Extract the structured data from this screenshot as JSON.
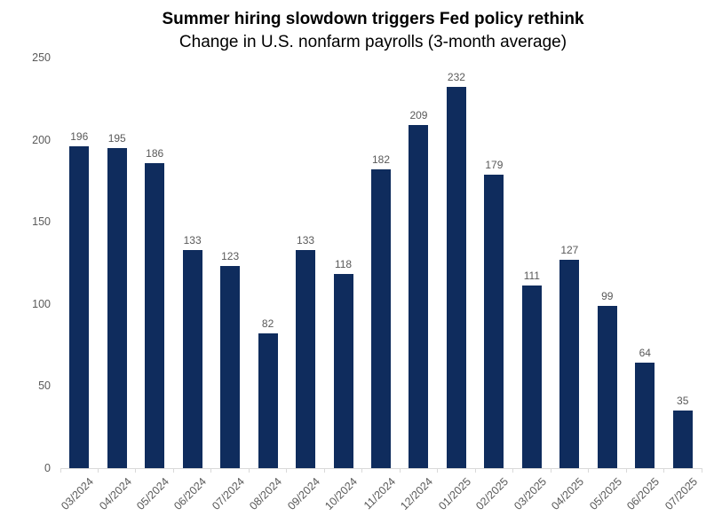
{
  "chart_data": {
    "type": "bar",
    "title": "Summer hiring slowdown triggers Fed policy rethink",
    "subtitle": "Change in U.S. nonfarm payrolls (3-month average)",
    "categories": [
      "03/2024",
      "04/2024",
      "05/2024",
      "06/2024",
      "07/2024",
      "08/2024",
      "09/2024",
      "10/2024",
      "11/2024",
      "12/2024",
      "01/2025",
      "02/2025",
      "03/2025",
      "04/2025",
      "05/2025",
      "06/2025",
      "07/2025"
    ],
    "values": [
      196,
      195,
      186,
      133,
      123,
      82,
      133,
      118,
      182,
      209,
      232,
      179,
      111,
      127,
      99,
      64,
      35
    ],
    "xlabel": "",
    "ylabel": "",
    "ylim": [
      0,
      250
    ],
    "yticks": [
      0,
      50,
      100,
      150,
      200,
      250
    ],
    "grid": false,
    "legend_position": "none",
    "value_labels_shown": true,
    "x_labels_rotation_deg": 45
  },
  "colors": {
    "bar": "#0f2c5d",
    "value_label": "#595959",
    "tick_label": "#595959",
    "axis_line": "#d9d9d9",
    "title": "#000000"
  }
}
